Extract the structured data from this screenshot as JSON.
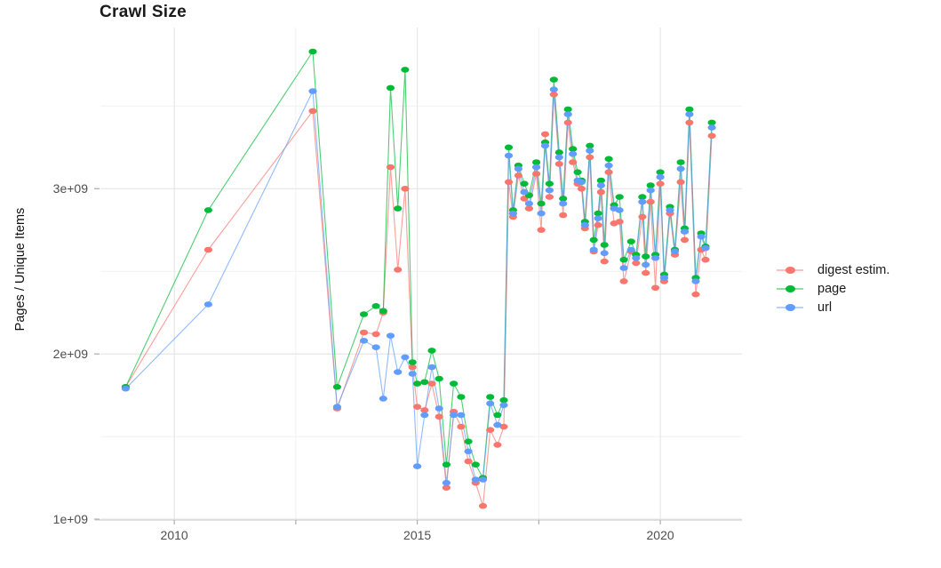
{
  "chart_data": {
    "type": "line",
    "title": "Crawl Size",
    "ylabel": "Pages / Unique Items",
    "xlabel": "",
    "y_unit": "1e9 (billions of pages / unique items)",
    "grid": {
      "major": true,
      "minor": true
    },
    "legend_position": "right",
    "x_domain": [
      2008.48,
      2021.68
    ],
    "y_domain": [
      0.995,
      3.975
    ],
    "x_ticks": [
      {
        "value": 2010,
        "label": "2010"
      },
      {
        "value": 2015,
        "label": "2015"
      },
      {
        "value": 2020,
        "label": "2020"
      }
    ],
    "x_minor_ticks": [
      2012.5,
      2017.5
    ],
    "y_ticks": [
      {
        "value": 1,
        "label": "1e+09"
      },
      {
        "value": 2,
        "label": "2e+09"
      },
      {
        "value": 3,
        "label": "3e+09"
      }
    ],
    "y_minor_ticks": [
      1.5,
      2.5,
      3.5
    ],
    "x": [
      2009.0,
      2010.7,
      2012.85,
      2013.35,
      2013.9,
      2014.15,
      2014.3,
      2014.45,
      2014.6,
      2014.75,
      2014.9,
      2015.0,
      2015.15,
      2015.3,
      2015.45,
      2015.6,
      2015.75,
      2015.9,
      2016.05,
      2016.2,
      2016.35,
      2016.5,
      2016.65,
      2016.78,
      2016.88,
      2016.97,
      2017.08,
      2017.2,
      2017.3,
      2017.45,
      2017.55,
      2017.63,
      2017.72,
      2017.81,
      2017.92,
      2018.0,
      2018.1,
      2018.2,
      2018.3,
      2018.38,
      2018.45,
      2018.55,
      2018.63,
      2018.72,
      2018.78,
      2018.85,
      2018.94,
      2019.05,
      2019.16,
      2019.25,
      2019.4,
      2019.5,
      2019.63,
      2019.7,
      2019.8,
      2019.9,
      2020.0,
      2020.08,
      2020.2,
      2020.3,
      2020.42,
      2020.5,
      2020.6,
      2020.73,
      2020.84,
      2020.93,
      2021.06
    ],
    "series": [
      {
        "name": "digest estim.",
        "color": "#F8766D",
        "values": [
          1.8,
          2.63,
          3.47,
          1.67,
          2.13,
          2.12,
          2.25,
          3.13,
          2.51,
          3.0,
          1.92,
          1.68,
          1.66,
          1.82,
          1.62,
          1.19,
          1.65,
          1.56,
          1.35,
          1.22,
          1.08,
          1.54,
          1.45,
          1.56,
          3.04,
          2.83,
          3.08,
          2.94,
          2.88,
          3.09,
          2.75,
          3.33,
          2.95,
          3.57,
          3.15,
          2.84,
          3.4,
          3.16,
          3.03,
          3.0,
          2.76,
          3.19,
          2.62,
          2.78,
          2.98,
          2.56,
          3.1,
          2.79,
          2.8,
          2.44,
          2.62,
          2.55,
          2.83,
          2.49,
          2.92,
          2.4,
          3.03,
          2.44,
          2.85,
          2.6,
          3.04,
          2.69,
          3.4,
          2.36,
          2.63,
          2.57,
          3.32
        ]
      },
      {
        "name": "page",
        "color": "#00BA38",
        "values": [
          1.8,
          2.87,
          3.83,
          1.8,
          2.24,
          2.29,
          2.26,
          3.61,
          2.88,
          3.72,
          1.95,
          1.82,
          1.83,
          2.02,
          1.85,
          1.33,
          1.82,
          1.74,
          1.47,
          1.33,
          1.25,
          1.74,
          1.63,
          1.72,
          3.25,
          2.87,
          3.14,
          3.03,
          2.96,
          3.16,
          2.91,
          3.28,
          3.03,
          3.66,
          3.22,
          2.94,
          3.48,
          3.24,
          3.1,
          3.05,
          2.8,
          3.26,
          2.69,
          2.85,
          3.05,
          2.66,
          3.18,
          2.9,
          2.95,
          2.57,
          2.68,
          2.6,
          2.95,
          2.59,
          3.02,
          2.6,
          3.1,
          2.48,
          2.89,
          2.63,
          3.16,
          2.76,
          3.48,
          2.46,
          2.73,
          2.65,
          3.4
        ]
      },
      {
        "name": "url",
        "color": "#619CFF",
        "values": [
          1.79,
          2.3,
          3.59,
          1.68,
          2.08,
          2.04,
          1.73,
          2.11,
          1.89,
          1.98,
          1.88,
          1.32,
          1.63,
          1.92,
          1.67,
          1.22,
          1.63,
          1.63,
          1.41,
          1.24,
          1.24,
          1.7,
          1.57,
          1.69,
          3.2,
          2.85,
          3.12,
          2.98,
          2.91,
          3.13,
          2.85,
          3.26,
          2.99,
          3.6,
          3.19,
          2.91,
          3.45,
          3.21,
          3.05,
          3.04,
          2.78,
          3.23,
          2.63,
          2.82,
          3.02,
          2.61,
          3.14,
          2.88,
          2.87,
          2.52,
          2.63,
          2.58,
          2.92,
          2.54,
          2.99,
          2.58,
          3.07,
          2.46,
          2.87,
          2.62,
          3.12,
          2.74,
          3.45,
          2.44,
          2.71,
          2.64,
          3.37
        ]
      }
    ],
    "style": {
      "background": "#FFFFFF",
      "grid_major_color": "#E4E4E4",
      "grid_minor_color": "#F1F1F1",
      "axis_line_color": "#D9D9D9",
      "tick_color": "#ABABAB",
      "tick_text_color": "#4D4D4D"
    }
  }
}
